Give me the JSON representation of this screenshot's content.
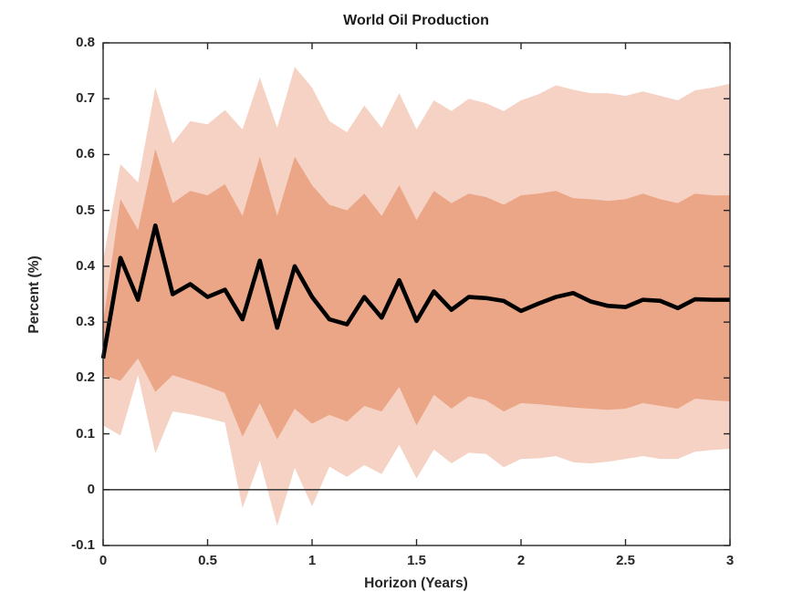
{
  "title": "World Oil Production",
  "axes": {
    "xlabel": "Horizon (Years)",
    "ylabel": "Percent (%)"
  },
  "colors": {
    "outer_band": "#f5d2c3",
    "inner_band": "#eba687",
    "line": "#000000",
    "axis": "#262626",
    "zero_line": "#404040",
    "background": "#ffffff"
  },
  "chart_data": {
    "type": "area",
    "title": "World Oil Production",
    "xlabel": "Horizon (Years)",
    "ylabel": "Percent (%)",
    "xlim": [
      0,
      3
    ],
    "ylim": [
      -0.1,
      0.8
    ],
    "grid": false,
    "legend": "none",
    "xticks": [
      0,
      0.5,
      1,
      1.5,
      2,
      2.5,
      3
    ],
    "xtick_labels": [
      "0",
      "0.5",
      "1",
      "1.5",
      "2",
      "2.5",
      "3"
    ],
    "yticks": [
      -0.1,
      0,
      0.1,
      0.2,
      0.3,
      0.4,
      0.5,
      0.6,
      0.7,
      0.8
    ],
    "ytick_labels": [
      "-0.1",
      "0",
      "0.1",
      "0.2",
      "0.3",
      "0.4",
      "0.5",
      "0.6",
      "0.7",
      "0.8"
    ],
    "zero_line": 0,
    "x": [
      0,
      0.083,
      0.167,
      0.25,
      0.333,
      0.417,
      0.5,
      0.583,
      0.667,
      0.75,
      0.833,
      0.917,
      1,
      1.083,
      1.167,
      1.25,
      1.333,
      1.417,
      1.5,
      1.583,
      1.667,
      1.75,
      1.833,
      1.917,
      2,
      2.083,
      2.167,
      2.25,
      2.333,
      2.417,
      2.5,
      2.583,
      2.667,
      2.75,
      2.833,
      2.917,
      3
    ],
    "series": [
      {
        "name": "point-estimate",
        "type": "line",
        "color": "#000000",
        "values": [
          0.235,
          0.415,
          0.34,
          0.473,
          0.35,
          0.368,
          0.345,
          0.358,
          0.305,
          0.41,
          0.29,
          0.4,
          0.345,
          0.305,
          0.296,
          0.345,
          0.308,
          0.375,
          0.302,
          0.355,
          0.322,
          0.345,
          0.343,
          0.338,
          0.32,
          0.333,
          0.345,
          0.352,
          0.337,
          0.329,
          0.327,
          0.34,
          0.338,
          0.325,
          0.341,
          0.34,
          0.34
        ]
      }
    ],
    "bands": [
      {
        "name": "outer-confidence-band",
        "color": "#f5d2c3",
        "upper": [
          0.41,
          0.583,
          0.55,
          0.72,
          0.62,
          0.66,
          0.654,
          0.68,
          0.645,
          0.738,
          0.648,
          0.757,
          0.72,
          0.66,
          0.64,
          0.688,
          0.648,
          0.71,
          0.645,
          0.697,
          0.678,
          0.7,
          0.692,
          0.678,
          0.697,
          0.708,
          0.724,
          0.716,
          0.71,
          0.71,
          0.705,
          0.713,
          0.705,
          0.697,
          0.715,
          0.72,
          0.727
        ],
        "lower": [
          0.115,
          0.097,
          0.205,
          0.065,
          0.14,
          0.135,
          0.128,
          0.12,
          -0.033,
          0.052,
          -0.065,
          0.039,
          -0.03,
          0.041,
          0.023,
          0.044,
          0.028,
          0.08,
          0.02,
          0.072,
          0.047,
          0.066,
          0.064,
          0.04,
          0.055,
          0.056,
          0.06,
          0.049,
          0.047,
          0.05,
          0.055,
          0.06,
          0.055,
          0.055,
          0.068,
          0.071,
          0.073
        ]
      },
      {
        "name": "inner-confidence-band",
        "color": "#eba687",
        "upper": [
          0.3,
          0.52,
          0.465,
          0.61,
          0.513,
          0.535,
          0.527,
          0.547,
          0.49,
          0.596,
          0.49,
          0.596,
          0.545,
          0.51,
          0.5,
          0.53,
          0.49,
          0.545,
          0.483,
          0.535,
          0.513,
          0.53,
          0.524,
          0.51,
          0.527,
          0.53,
          0.535,
          0.522,
          0.52,
          0.517,
          0.52,
          0.53,
          0.52,
          0.513,
          0.53,
          0.527,
          0.527
        ],
        "lower": [
          0.205,
          0.195,
          0.235,
          0.175,
          0.205,
          0.195,
          0.185,
          0.173,
          0.095,
          0.155,
          0.09,
          0.145,
          0.118,
          0.134,
          0.122,
          0.15,
          0.14,
          0.184,
          0.115,
          0.17,
          0.145,
          0.167,
          0.16,
          0.14,
          0.155,
          0.153,
          0.15,
          0.147,
          0.145,
          0.143,
          0.145,
          0.155,
          0.15,
          0.145,
          0.163,
          0.16,
          0.158
        ]
      }
    ]
  }
}
